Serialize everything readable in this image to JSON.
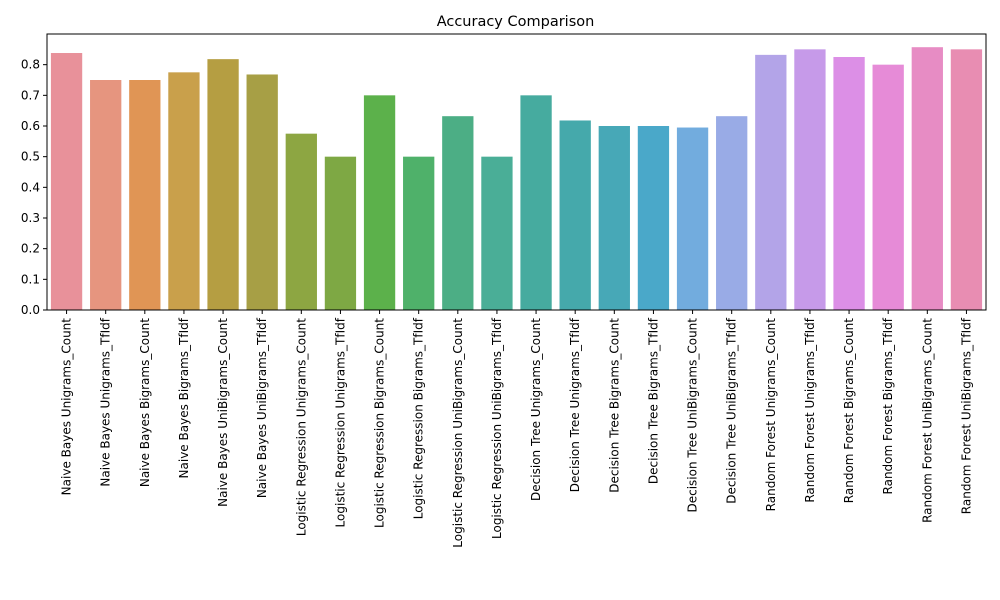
{
  "chart_data": {
    "type": "bar",
    "title": "Accuracy Comparison",
    "xlabel": "",
    "ylabel": "",
    "ylim": [
      0,
      0.9
    ],
    "yticks": [
      0.0,
      0.1,
      0.2,
      0.3,
      0.4,
      0.5,
      0.6,
      0.7,
      0.8
    ],
    "grid": false,
    "categories": [
      "Naive Bayes Unigrams_Count",
      "Naive Bayes Unigrams_TfIdf",
      "Naive Bayes Bigrams_Count",
      "Naive Bayes Bigrams_TfIdf",
      "Naive Bayes UniBigrams_Count",
      "Naive Bayes UniBigrams_TfIdf",
      "Logistic Regression Unigrams_Count",
      "Logistic Regression Unigrams_TfIdf",
      "Logistic Regression Bigrams_Count",
      "Logistic Regression Bigrams_TfIdf",
      "Logistic Regression UniBigrams_Count",
      "Logistic Regression UniBigrams_TfIdf",
      "Decision Tree Unigrams_Count",
      "Decision Tree Unigrams_TfIdf",
      "Decision Tree Bigrams_Count",
      "Decision Tree Bigrams_TfIdf",
      "Decision Tree UniBigrams_Count",
      "Decision Tree UniBigrams_TfIdf",
      "Random Forest Unigrams_Count",
      "Random Forest Unigrams_TfIdf",
      "Random Forest Bigrams_Count",
      "Random Forest Bigrams_TfIdf",
      "Random Forest UniBigrams_Count",
      "Random Forest UniBigrams_TfIdf"
    ],
    "values": [
      0.838,
      0.75,
      0.75,
      0.775,
      0.818,
      0.768,
      0.575,
      0.5,
      0.7,
      0.5,
      0.632,
      0.5,
      0.7,
      0.618,
      0.6,
      0.6,
      0.595,
      0.632,
      0.832,
      0.85,
      0.825,
      0.8,
      0.857,
      0.85
    ],
    "colors": [
      "#e8919a",
      "#e6957f",
      "#e09555",
      "#c9a04b",
      "#b59e42",
      "#a79f45",
      "#8da642",
      "#7ea844",
      "#5cb14b",
      "#4fb16a",
      "#4cae85",
      "#4aae97",
      "#46ab9f",
      "#45a9ab",
      "#47a8b7",
      "#4aa8c9",
      "#72acde",
      "#99abe6",
      "#b3a4e8",
      "#c69ae9",
      "#dc8fe6",
      "#e68bd7",
      "#e78cc4",
      "#e88db2"
    ]
  }
}
